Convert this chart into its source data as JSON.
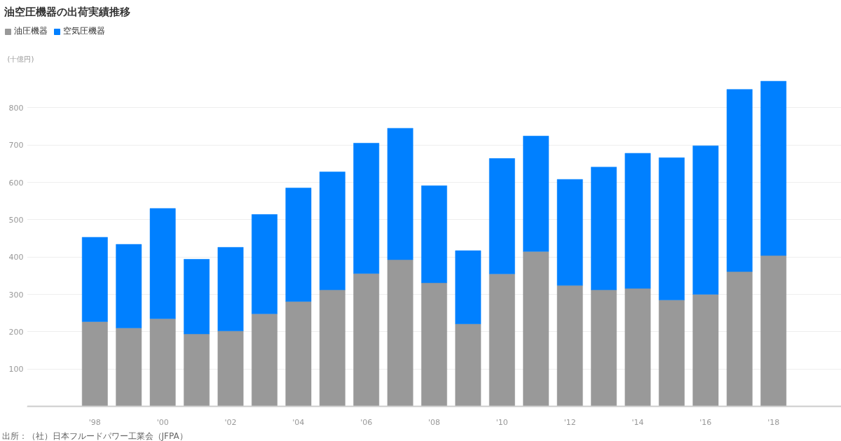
{
  "chart_data": {
    "type": "bar",
    "title": "油空圧機器の出荷実績推移",
    "ylabel": "(十億円)",
    "categories": [
      "'98",
      null,
      "'00",
      null,
      "'02",
      null,
      "'04",
      null,
      "'06",
      null,
      "'08",
      null,
      "'10",
      null,
      "'12",
      null,
      "'14",
      null,
      "'16",
      null,
      "'18"
    ],
    "series": [
      {
        "name": "油圧機器",
        "color": "#999999",
        "values": [
          227,
          210,
          235,
          194,
          202,
          248,
          281,
          312,
          356,
          393,
          331,
          221,
          355,
          415,
          324,
          312,
          316,
          285,
          300,
          361,
          404
        ]
      },
      {
        "name": "空気圧機器",
        "color": "#0080ff",
        "values": [
          226,
          224,
          295,
          200,
          224,
          266,
          304,
          316,
          349,
          352,
          260,
          196,
          309,
          309,
          284,
          329,
          362,
          381,
          398,
          488,
          467
        ]
      }
    ],
    "stacked": true,
    "ylim": [
      0,
      900
    ],
    "yticks": [
      {
        "value": 100,
        "label": "100"
      },
      {
        "value": 200,
        "label": "200"
      },
      {
        "value": 300,
        "label": "300"
      },
      {
        "value": 400,
        "label": "400"
      },
      {
        "value": 500,
        "label": "500"
      },
      {
        "value": 600,
        "label": "600"
      },
      {
        "value": 700,
        "label": "700"
      },
      {
        "value": 800,
        "label": "800"
      }
    ],
    "grid": "y",
    "legend": "top left",
    "annotations": [
      "出所：（社）日本フルードパワー工業会（JFPA）"
    ]
  }
}
